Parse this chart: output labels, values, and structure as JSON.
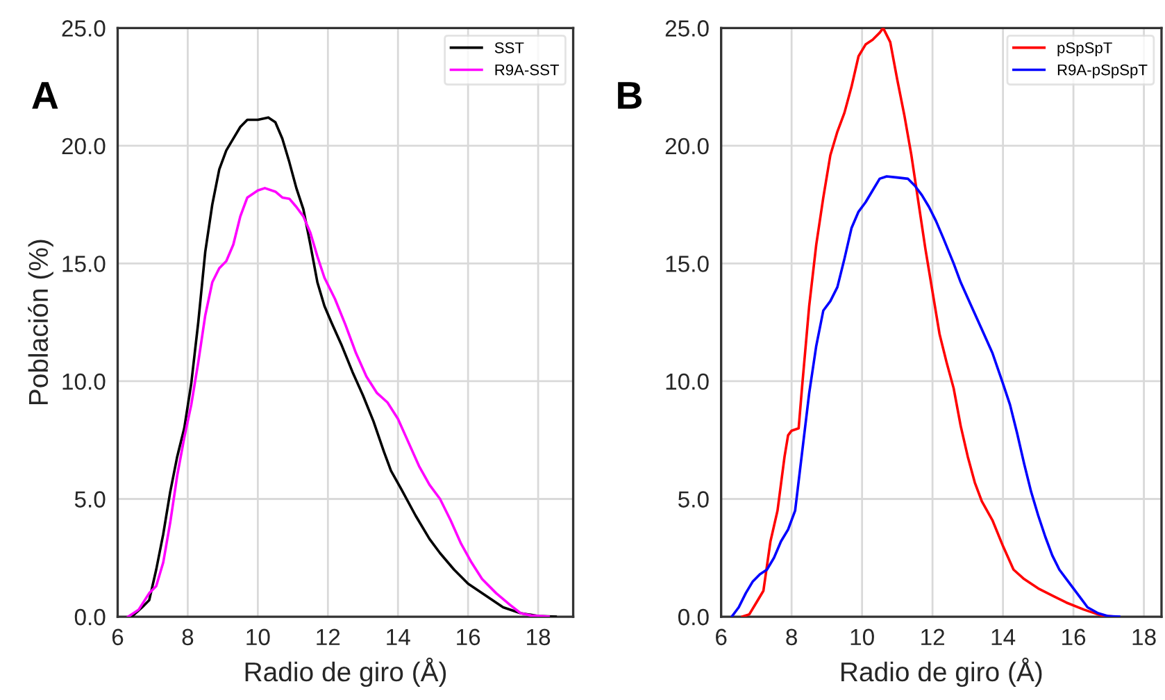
{
  "chart_data": [
    {
      "type": "line",
      "xlabel": "Radio de giro (Å)",
      "ylabel": "Población (%)",
      "annotations": [
        "A"
      ],
      "xlim": [
        6,
        19
      ],
      "ylim": [
        0,
        25
      ],
      "xticks": [
        6,
        8,
        10,
        12,
        14,
        16,
        18
      ],
      "yticks": [
        {
          "value": 0,
          "label": "0.0"
        },
        {
          "value": 5,
          "label": "5.0"
        },
        {
          "value": 10,
          "label": "10.0"
        },
        {
          "value": 15,
          "label": "15.0"
        },
        {
          "value": 20,
          "label": "20.0"
        },
        {
          "value": 25,
          "label": "25.0"
        }
      ],
      "grid": true,
      "legend": "top right",
      "series": [
        {
          "name": "SST",
          "color": "#000000",
          "x": [
            6.4,
            6.7,
            6.9,
            7.1,
            7.3,
            7.5,
            7.7,
            7.9,
            8.1,
            8.3,
            8.5,
            8.7,
            8.9,
            9.1,
            9.3,
            9.5,
            9.7,
            10.0,
            10.3,
            10.5,
            10.7,
            10.9,
            11.1,
            11.3,
            11.5,
            11.7,
            11.9,
            12.1,
            12.4,
            12.7,
            13.0,
            13.3,
            13.6,
            13.8,
            14.1,
            14.5,
            14.9,
            15.2,
            15.6,
            16.0,
            16.5,
            17.0,
            17.5,
            18.0,
            18.5
          ],
          "values": [
            0,
            0.4,
            0.7,
            2.0,
            3.5,
            5.3,
            6.8,
            8.0,
            9.9,
            12.5,
            15.5,
            17.5,
            19.0,
            19.8,
            20.3,
            20.8,
            21.1,
            21.1,
            21.2,
            21.0,
            20.3,
            19.3,
            18.2,
            17.3,
            15.8,
            14.2,
            13.2,
            12.5,
            11.5,
            10.4,
            9.4,
            8.3,
            7.0,
            6.2,
            5.4,
            4.3,
            3.3,
            2.7,
            2.0,
            1.4,
            0.9,
            0.4,
            0.15,
            0.03,
            0
          ]
        },
        {
          "name": "R9A-SST",
          "color": "#ff00ff",
          "x": [
            6.3,
            6.6,
            6.9,
            7.1,
            7.3,
            7.5,
            7.7,
            7.9,
            8.1,
            8.3,
            8.5,
            8.7,
            8.9,
            9.1,
            9.3,
            9.5,
            9.7,
            10.0,
            10.2,
            10.5,
            10.7,
            10.9,
            11.1,
            11.3,
            11.5,
            11.7,
            11.9,
            12.2,
            12.5,
            12.8,
            13.1,
            13.4,
            13.7,
            14.0,
            14.3,
            14.6,
            14.9,
            15.2,
            15.5,
            15.8,
            16.1,
            16.4,
            16.8,
            17.2,
            17.5,
            17.8,
            18.3
          ],
          "values": [
            0,
            0.3,
            1.0,
            1.3,
            2.3,
            4.0,
            6.0,
            7.6,
            9.0,
            10.8,
            12.8,
            14.2,
            14.8,
            15.1,
            15.8,
            17.0,
            17.8,
            18.1,
            18.2,
            18.05,
            17.8,
            17.75,
            17.4,
            17.0,
            16.3,
            15.3,
            14.4,
            13.5,
            12.4,
            11.2,
            10.2,
            9.5,
            9.1,
            8.4,
            7.4,
            6.4,
            5.6,
            5.0,
            4.1,
            3.1,
            2.3,
            1.6,
            1.0,
            0.5,
            0.15,
            0.05,
            0
          ]
        }
      ]
    },
    {
      "type": "line",
      "xlabel": "Radio de giro (Å)",
      "annotations": [
        "B"
      ],
      "xlim": [
        6,
        18.5
      ],
      "ylim": [
        0,
        25
      ],
      "xticks": [
        6,
        8,
        10,
        12,
        14,
        16,
        18
      ],
      "yticks": [
        {
          "value": 0,
          "label": "0.0"
        },
        {
          "value": 5,
          "label": "5.0"
        },
        {
          "value": 10,
          "label": "10.0"
        },
        {
          "value": 15,
          "label": "15.0"
        },
        {
          "value": 20,
          "label": "20.0"
        },
        {
          "value": 25,
          "label": "25.0"
        }
      ],
      "grid": true,
      "legend": "top right",
      "series": [
        {
          "name": "pSpSpT",
          "color": "#ff0000",
          "x": [
            6.6,
            6.8,
            7.0,
            7.2,
            7.4,
            7.6,
            7.8,
            7.9,
            8.0,
            8.2,
            8.3,
            8.5,
            8.7,
            8.9,
            9.1,
            9.3,
            9.5,
            9.7,
            9.9,
            10.1,
            10.3,
            10.5,
            10.6,
            10.8,
            11.0,
            11.2,
            11.4,
            11.6,
            11.8,
            12.0,
            12.2,
            12.4,
            12.6,
            12.8,
            13.0,
            13.2,
            13.4,
            13.7,
            14.0,
            14.3,
            14.6,
            15.0,
            15.4,
            15.8,
            16.3,
            16.8,
            17.2
          ],
          "values": [
            0,
            0.1,
            0.6,
            1.1,
            3.2,
            4.5,
            6.8,
            7.7,
            7.9,
            8.0,
            9.8,
            13.2,
            15.8,
            17.8,
            19.6,
            20.6,
            21.4,
            22.5,
            23.8,
            24.3,
            24.5,
            24.8,
            25.0,
            24.4,
            22.8,
            21.3,
            19.6,
            17.6,
            15.6,
            13.8,
            12.0,
            10.8,
            9.7,
            8.1,
            6.8,
            5.7,
            4.9,
            4.1,
            3.0,
            2.0,
            1.6,
            1.2,
            0.9,
            0.6,
            0.3,
            0.05,
            0
          ]
        },
        {
          "name": "R9A-pSpSpT",
          "color": "#0000ff",
          "x": [
            6.3,
            6.5,
            6.7,
            6.9,
            7.1,
            7.3,
            7.5,
            7.7,
            7.9,
            8.1,
            8.3,
            8.5,
            8.7,
            8.9,
            9.1,
            9.3,
            9.5,
            9.7,
            9.9,
            10.1,
            10.3,
            10.5,
            10.7,
            11.0,
            11.3,
            11.5,
            11.7,
            11.9,
            12.1,
            12.3,
            12.6,
            12.8,
            13.1,
            13.4,
            13.7,
            14.0,
            14.2,
            14.4,
            14.6,
            14.8,
            15.0,
            15.2,
            15.4,
            15.6,
            15.8,
            16.0,
            16.2,
            16.4,
            16.7,
            17.0,
            17.3
          ],
          "values": [
            0,
            0.4,
            1.0,
            1.5,
            1.8,
            2.0,
            2.5,
            3.2,
            3.7,
            4.5,
            7.0,
            9.5,
            11.5,
            13.0,
            13.4,
            14.0,
            15.2,
            16.5,
            17.2,
            17.6,
            18.1,
            18.6,
            18.7,
            18.65,
            18.6,
            18.3,
            17.9,
            17.4,
            16.8,
            16.1,
            15.0,
            14.2,
            13.2,
            12.2,
            11.2,
            9.9,
            9.0,
            7.8,
            6.5,
            5.3,
            4.3,
            3.4,
            2.6,
            2.0,
            1.6,
            1.2,
            0.8,
            0.4,
            0.15,
            0.02,
            0
          ]
        }
      ]
    }
  ]
}
